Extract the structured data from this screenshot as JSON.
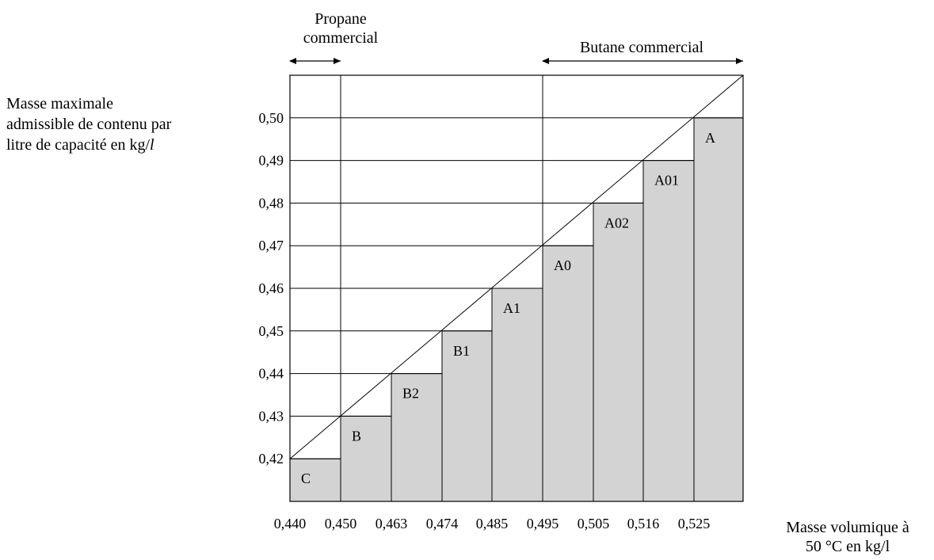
{
  "chart_data": {
    "type": "bar",
    "title": "",
    "xlabel_line1": "Masse volumique à",
    "xlabel_line2": "50 °C en kg/l",
    "ylabel_line1": "Masse maximale",
    "ylabel_line2": "admissible de contenu par",
    "ylabel_line3_text": "litre de capacité en kg/",
    "ylabel_line3_italic": "l",
    "categories": [
      "C",
      "B",
      "B2",
      "B1",
      "A1",
      "A0",
      "A02",
      "A01",
      "A"
    ],
    "bins": [
      {
        "label": "C",
        "x_from": "0,440",
        "x_to": "0,450",
        "value": 0.42
      },
      {
        "label": "B",
        "x_from": "0,450",
        "x_to": "0,463",
        "value": 0.43
      },
      {
        "label": "B2",
        "x_from": "0,463",
        "x_to": "0,474",
        "value": 0.44
      },
      {
        "label": "B1",
        "x_from": "0,474",
        "x_to": "0,485",
        "value": 0.45
      },
      {
        "label": "A1",
        "x_from": "0,485",
        "x_to": "0,495",
        "value": 0.46
      },
      {
        "label": "A0",
        "x_from": "0,495",
        "x_to": "0,505",
        "value": 0.47
      },
      {
        "label": "A02",
        "x_from": "0,505",
        "x_to": "0,516",
        "value": 0.48
      },
      {
        "label": "A01",
        "x_from": "0,516",
        "x_to": "0,525",
        "value": 0.49
      },
      {
        "label": "A",
        "x_from": "0,525",
        "x_to": "",
        "value": 0.5
      }
    ],
    "x_tick_labels": [
      "0,440",
      "0,450",
      "0,463",
      "0,474",
      "0,485",
      "0,495",
      "0,505",
      "0,516",
      "0,525"
    ],
    "y_ticks": [
      0.42,
      0.43,
      0.44,
      0.45,
      0.46,
      0.47,
      0.48,
      0.49,
      0.5
    ],
    "y_tick_labels": [
      "0,42",
      "0,43",
      "0,44",
      "0,45",
      "0,46",
      "0,47",
      "0,48",
      "0,49",
      "0,50"
    ],
    "ylim": [
      0.41,
      0.51
    ],
    "diagonal_line": true,
    "bar_color": "#d3d3d3",
    "line_color": "#000000",
    "annotations": [
      {
        "text_line1": "Propane",
        "text_line2": "commercial",
        "x_from": "0,440",
        "x_to": "0,450",
        "direction": "both"
      },
      {
        "text": "Butane commercial",
        "x_from": "0,495",
        "x_to": "",
        "direction": "both"
      }
    ]
  }
}
